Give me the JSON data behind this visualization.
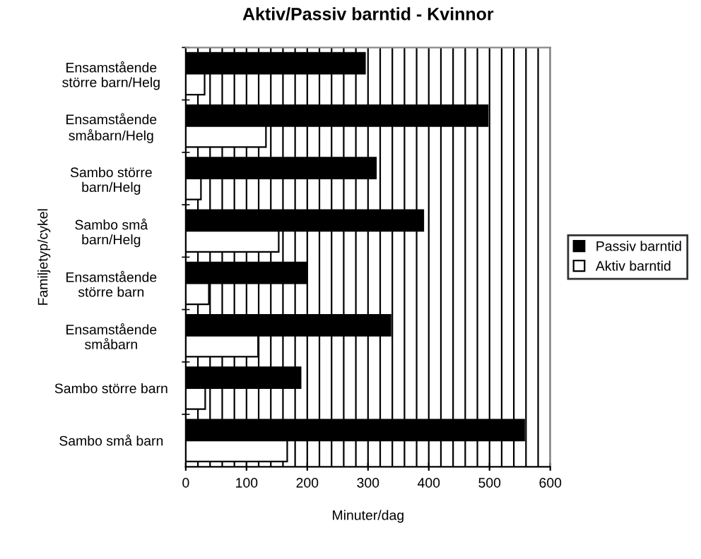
{
  "chart_data": {
    "type": "bar",
    "orientation": "horizontal",
    "title": "Aktiv/Passiv barntid - Kvinnor",
    "xlabel": "Minuter/dag",
    "ylabel": "Familjetyp/cykel",
    "categories": [
      "Ensamstående\nstörre barn/Helg",
      "Ensamstående\nsmåbarn/Helg",
      "Sambo större\nbarn/Helg",
      "Sambo små\nbarn/Helg",
      "Ensamstående\nstörre barn",
      "Ensamstående\nsmåbarn",
      "Sambo större barn",
      "Sambo små barn"
    ],
    "series": [
      {
        "name": "Passiv barntid",
        "color": "#000000",
        "values": [
          295,
          497,
          313,
          391,
          200,
          337,
          189,
          557
        ]
      },
      {
        "name": "Aktiv barntid",
        "color": "#ffffff",
        "values": [
          31,
          132,
          25,
          153,
          38,
          119,
          32,
          167
        ]
      }
    ],
    "xlim": [
      0,
      600
    ],
    "xticks": [
      0,
      100,
      200,
      300,
      400,
      500,
      600
    ],
    "grid": "x",
    "legend": "right"
  }
}
